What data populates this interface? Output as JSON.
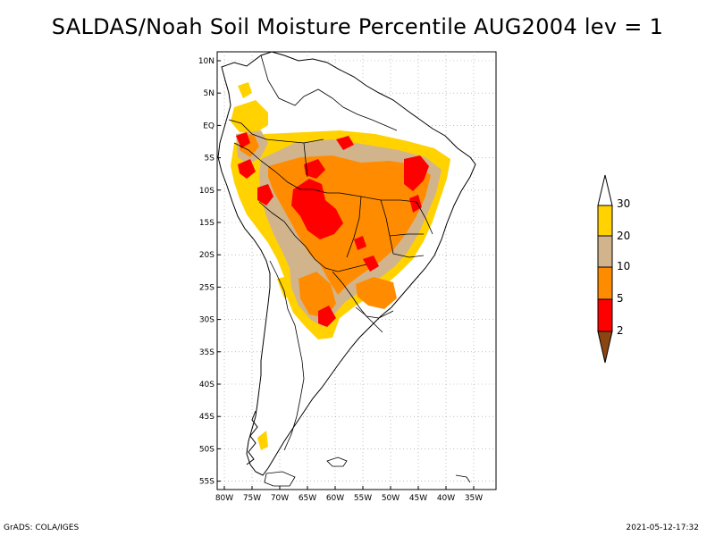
{
  "title": "SALDAS/Noah Soil Moisture Percentile AUG2004 lev = 1",
  "footer": {
    "left": "GrADS: COLA/IGES",
    "right": "2021-05-12-17:32"
  },
  "map": {
    "lat_labels": [
      "10N",
      "5N",
      "EQ",
      "5S",
      "10S",
      "15S",
      "20S",
      "25S",
      "30S",
      "35S",
      "40S",
      "45S",
      "50S",
      "55S"
    ],
    "lon_labels": [
      "80W",
      "75W",
      "70W",
      "65W",
      "60W",
      "55W",
      "50W",
      "45W",
      "40W",
      "35W"
    ],
    "gridlines": "dotted"
  },
  "legend": {
    "labels": [
      "30",
      "20",
      "10",
      "5",
      "2"
    ],
    "colors": [
      "#ffffff",
      "#ffd200",
      "#d2b48c",
      "#ff8c00",
      "#ff0000",
      "#8b4513"
    ]
  },
  "colors": {
    "yellow": "#ffd200",
    "tan": "#d2b48c",
    "orange": "#ff8c00",
    "red": "#ff0000",
    "brown": "#8b4513"
  }
}
